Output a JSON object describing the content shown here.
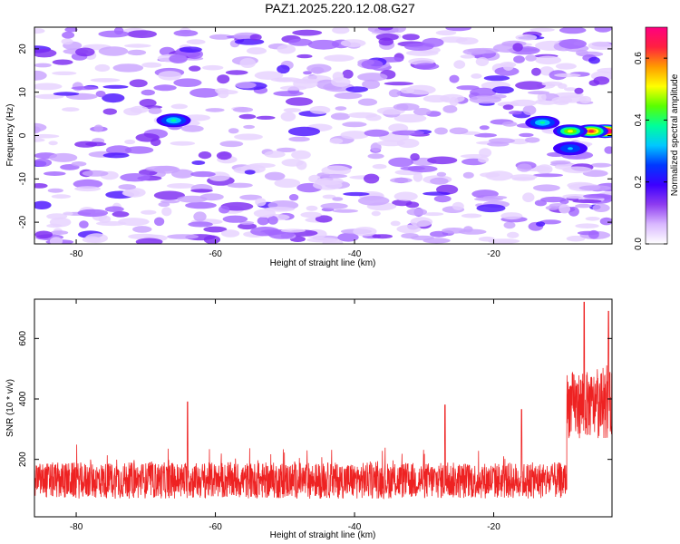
{
  "page": {
    "title": "PAZ1.2025.220.12.08.G27"
  },
  "chart_data": [
    {
      "type": "heatmap",
      "xlabel": "Height of straight line (km)",
      "ylabel": "Frequency (Hz)",
      "xlim": [
        -86,
        -3
      ],
      "ylim": [
        -25,
        25
      ],
      "xticks": [
        -80,
        -60,
        -40,
        -20
      ],
      "yticks": [
        -20,
        -10,
        0,
        10,
        20
      ],
      "colorbar": {
        "label": "Normalized spectral amplitude",
        "range": [
          0.0,
          0.7
        ],
        "ticks": [
          "0.0",
          "0.2",
          "0.4",
          "0.6"
        ],
        "colors": [
          "#ffffff",
          "#d9b8ff",
          "#8e3cf0",
          "#3c00ff",
          "#0038ff",
          "#00c8ff",
          "#00ff9a",
          "#5aff00",
          "#ffff00",
          "#ff9a00",
          "#ff2040",
          "#ff0080"
        ]
      },
      "features": [
        {
          "x": -4,
          "y": 1,
          "value": 0.62
        },
        {
          "x": -6,
          "y": 1,
          "value": 0.45
        },
        {
          "x": -9,
          "y": 1,
          "value": 0.3
        },
        {
          "x": -13,
          "y": 3,
          "value": 0.2
        },
        {
          "x": -9,
          "y": -3,
          "value": 0.12
        },
        {
          "x": -66,
          "y": 3.5,
          "value": 0.18
        }
      ]
    },
    {
      "type": "line",
      "xlabel": "Height of straight line (km)",
      "ylabel": "SNR (10 * v/v)",
      "xlim": [
        -86,
        -3
      ],
      "ylim": [
        10,
        730
      ],
      "xticks": [
        -80,
        -60,
        -40,
        -20
      ],
      "yticks": [
        200,
        400,
        600
      ],
      "series": [
        {
          "color": "#ee2222",
          "segments": [
            {
              "x": [
                -86,
                -9.5
              ],
              "baseline": 130,
              "noise": 60,
              "peaks": [
                [
                  -64,
                  390
                ],
                [
                  -27,
                  380
                ],
                [
                  -16,
                  365
                ]
              ]
            },
            {
              "x": [
                -9.5,
                -3
              ],
              "baseline": 380,
              "noise": 110,
              "peaks": [
                [
                  -7,
                  720
                ],
                [
                  -3.5,
                  690
                ]
              ]
            }
          ]
        }
      ]
    }
  ]
}
